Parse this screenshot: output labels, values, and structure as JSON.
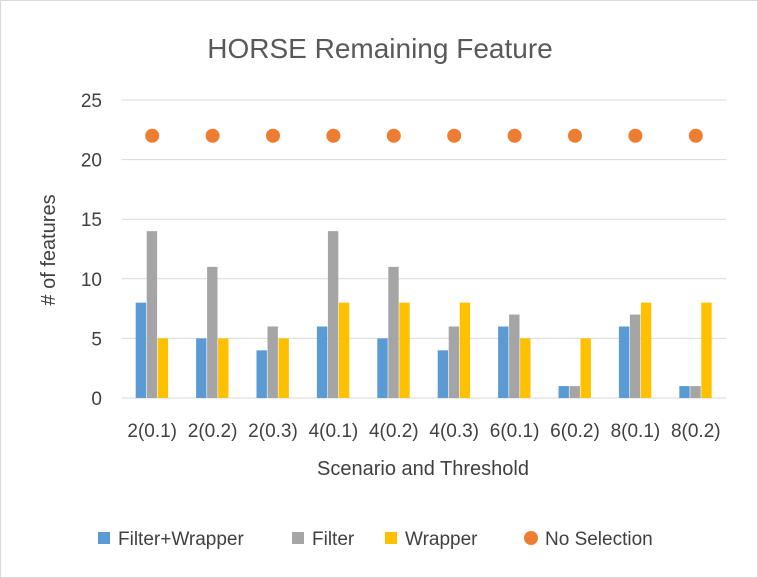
{
  "chart_data": {
    "type": "bar",
    "title": "HORSE Remaining Feature",
    "xlabel": "Scenario and Threshold",
    "ylabel": "# of features",
    "ylim": [
      0,
      25
    ],
    "yticks": [
      0,
      5,
      10,
      15,
      20,
      25
    ],
    "grid": true,
    "legend_position": "bottom",
    "categories": [
      "2(0.1)",
      "2(0.2)",
      "2(0.3)",
      "4(0.1)",
      "4(0.2)",
      "4(0.3)",
      "6(0.1)",
      "6(0.2)",
      "8(0.1)",
      "8(0.2)"
    ],
    "series": [
      {
        "name": "Filter+Wrapper",
        "kind": "bar",
        "color": "#5b9bd5",
        "values": [
          8,
          5,
          4,
          6,
          5,
          4,
          6,
          1,
          6,
          1
        ]
      },
      {
        "name": "Filter",
        "kind": "bar",
        "color": "#a5a5a5",
        "values": [
          14,
          11,
          6,
          14,
          11,
          6,
          7,
          1,
          7,
          1
        ]
      },
      {
        "name": "Wrapper",
        "kind": "bar",
        "color": "#ffc000",
        "values": [
          5,
          5,
          5,
          8,
          8,
          8,
          5,
          5,
          8,
          8
        ]
      },
      {
        "name": "No Selection",
        "kind": "point",
        "color": "#ed7d31",
        "values": [
          22,
          22,
          22,
          22,
          22,
          22,
          22,
          22,
          22,
          22
        ]
      }
    ]
  }
}
